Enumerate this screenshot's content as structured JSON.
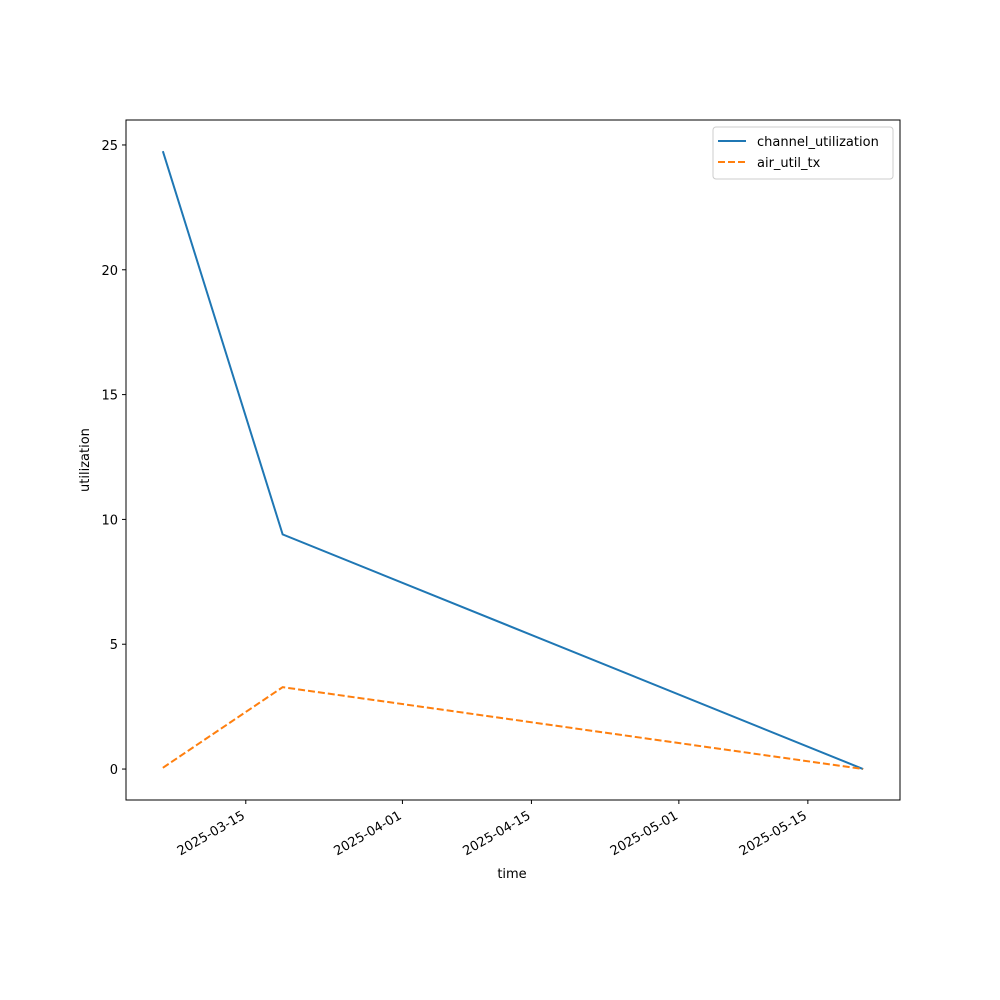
{
  "chart_data": {
    "type": "line",
    "xlabel": "time",
    "ylabel": "utilization",
    "x": [
      "2025-03-06",
      "2025-03-19",
      "2025-05-21"
    ],
    "series": [
      {
        "name": "channel_utilization",
        "color": "#1f77b4",
        "dash": "solid",
        "values": [
          24.75,
          9.4,
          0
        ]
      },
      {
        "name": "air_util_tx",
        "color": "#ff7f0e",
        "dash": "dashed",
        "values": [
          0.05,
          3.28,
          0
        ]
      }
    ],
    "xlim": [
      "2025-03-02",
      "2025-05-25"
    ],
    "xticks": [
      "2025-03-15",
      "2025-04-01",
      "2025-04-15",
      "2025-05-01",
      "2025-05-15"
    ],
    "ylim": [
      -1.24,
      26.0
    ],
    "yticks": [
      0,
      5,
      10,
      15,
      20,
      25
    ],
    "grid": false,
    "legend": "upper right"
  }
}
